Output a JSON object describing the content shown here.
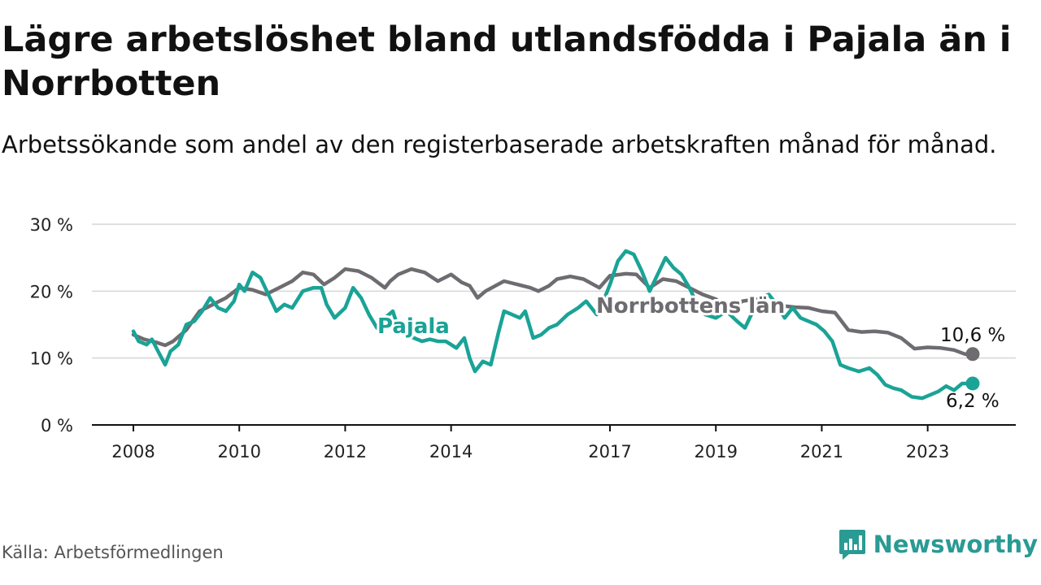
{
  "header": {
    "title": "Lägre arbetslöshet bland utlandsfödda i Pajala än i Norrbotten",
    "subtitle": "Arbetssökande som andel av den registerbaserade arbetskraften månad för månad."
  },
  "footer": {
    "source": "Källa: Arbetsförmedlingen",
    "brand": "Newsworthy"
  },
  "colors": {
    "pajala": "#1aa396",
    "norrbotten": "#6e6c70",
    "brand": "#2a9a94"
  },
  "chart_data": {
    "type": "line",
    "title": "Lägre arbetslöshet bland utlandsfödda i Pajala än i Norrbotten",
    "xlabel": "",
    "ylabel": "",
    "xlim": [
      2008.0,
      2024.55
    ],
    "ylim": [
      0,
      30
    ],
    "grid": true,
    "x_ticks": [
      2008,
      2010,
      2012,
      2014,
      2017,
      2019,
      2021,
      2023
    ],
    "x_tick_labels": [
      "2008",
      "2010",
      "2012",
      "2014",
      "2017",
      "2019",
      "2021",
      "2023"
    ],
    "y_ticks": [
      0,
      10,
      20,
      30
    ],
    "y_tick_labels": [
      "0 %",
      "10 %",
      "20 %",
      "30 %"
    ],
    "series": [
      {
        "name": "Norrbottens län",
        "label_text": "Norrbottens län",
        "end_label": "10,6 %",
        "x": [
          2008.0,
          2008.2,
          2008.45,
          2008.6,
          2008.75,
          2009.0,
          2009.25,
          2009.5,
          2009.75,
          2010.0,
          2010.25,
          2010.5,
          2010.75,
          2011.0,
          2011.2,
          2011.4,
          2011.6,
          2011.8,
          2012.0,
          2012.25,
          2012.5,
          2012.75,
          2012.85,
          2013.0,
          2013.25,
          2013.5,
          2013.75,
          2014.0,
          2014.2,
          2014.35,
          2014.5,
          2014.65,
          2015.0,
          2015.25,
          2015.5,
          2015.65,
          2015.85,
          2016.0,
          2016.25,
          2016.5,
          2016.8,
          2017.0,
          2017.3,
          2017.5,
          2017.75,
          2018.0,
          2018.25,
          2018.5,
          2018.75,
          2019.0,
          2019.25,
          2019.5,
          2019.75,
          2020.0,
          2020.25,
          2020.5,
          2020.75,
          2021.0,
          2021.25,
          2021.5,
          2021.75,
          2022.0,
          2022.25,
          2022.5,
          2022.75,
          2023.0,
          2023.25,
          2023.5,
          2023.7,
          2023.85
        ],
        "values": [
          13.5,
          12.8,
          12.3,
          11.9,
          12.5,
          14.2,
          17.0,
          18.0,
          19.0,
          20.5,
          20.2,
          19.5,
          20.5,
          21.5,
          22.8,
          22.5,
          21.0,
          22.0,
          23.3,
          23.0,
          22.0,
          20.5,
          21.5,
          22.5,
          23.3,
          22.8,
          21.5,
          22.5,
          21.3,
          20.8,
          19.0,
          20.0,
          21.5,
          21.0,
          20.5,
          20.0,
          20.8,
          21.8,
          22.2,
          21.8,
          20.5,
          22.3,
          22.6,
          22.5,
          20.5,
          21.8,
          21.5,
          20.5,
          19.5,
          18.8,
          17.2,
          18.5,
          18.8,
          18.2,
          17.8,
          17.6,
          17.5,
          17.0,
          16.8,
          14.2,
          13.9,
          14.0,
          13.8,
          13.0,
          11.4,
          11.6,
          11.5,
          11.2,
          10.6,
          10.6
        ]
      },
      {
        "name": "Pajala",
        "label_text": "Pajala",
        "end_label": "6,2 %",
        "x": [
          2008.0,
          2008.1,
          2008.25,
          2008.35,
          2008.5,
          2008.6,
          2008.7,
          2008.85,
          2009.0,
          2009.15,
          2009.3,
          2009.45,
          2009.6,
          2009.75,
          2009.9,
          2010.0,
          2010.1,
          2010.25,
          2010.4,
          2010.55,
          2010.7,
          2010.85,
          2011.0,
          2011.2,
          2011.4,
          2011.55,
          2011.65,
          2011.8,
          2012.0,
          2012.15,
          2012.3,
          2012.45,
          2012.6,
          2012.75,
          2012.9,
          2013.0,
          2013.15,
          2013.3,
          2013.45,
          2013.6,
          2013.75,
          2013.9,
          2014.0,
          2014.1,
          2014.25,
          2014.35,
          2014.45,
          2014.6,
          2014.75,
          2014.9,
          2015.0,
          2015.15,
          2015.3,
          2015.4,
          2015.55,
          2015.7,
          2015.85,
          2016.0,
          2016.2,
          2016.4,
          2016.55,
          2016.75,
          2016.9,
          2017.0,
          2017.15,
          2017.3,
          2017.45,
          2017.6,
          2017.75,
          2017.9,
          2018.05,
          2018.2,
          2018.35,
          2018.5,
          2018.65,
          2018.8,
          2019.0,
          2019.2,
          2019.4,
          2019.55,
          2019.7,
          2019.85,
          2020.0,
          2020.15,
          2020.3,
          2020.45,
          2020.6,
          2020.75,
          2020.9,
          2021.05,
          2021.2,
          2021.35,
          2021.5,
          2021.7,
          2021.9,
          2022.05,
          2022.2,
          2022.35,
          2022.5,
          2022.7,
          2022.9,
          2023.05,
          2023.2,
          2023.35,
          2023.5,
          2023.65,
          2023.85
        ],
        "values": [
          14.0,
          12.5,
          12.0,
          12.8,
          10.5,
          9.0,
          11.0,
          12.0,
          15.0,
          15.5,
          17.0,
          19.0,
          17.5,
          17.0,
          18.5,
          21.0,
          20.0,
          22.8,
          22.0,
          19.5,
          17.0,
          18.0,
          17.5,
          20.0,
          20.5,
          20.5,
          18.0,
          16.0,
          17.5,
          20.5,
          19.0,
          16.5,
          14.5,
          16.0,
          17.0,
          14.5,
          13.5,
          13.0,
          12.5,
          12.8,
          12.5,
          12.5,
          12.0,
          11.5,
          13.0,
          10.0,
          8.0,
          9.5,
          9.0,
          14.0,
          17.0,
          16.5,
          16.0,
          17.0,
          13.0,
          13.5,
          14.5,
          15.0,
          16.5,
          17.5,
          18.5,
          16.5,
          19.0,
          21.0,
          24.5,
          26.0,
          25.5,
          23.0,
          20.0,
          22.5,
          25.0,
          23.5,
          22.5,
          20.5,
          18.0,
          16.5,
          16.0,
          17.0,
          15.5,
          14.5,
          17.0,
          19.0,
          19.5,
          18.0,
          16.0,
          17.5,
          16.0,
          15.5,
          15.0,
          14.0,
          12.5,
          9.0,
          8.5,
          8.0,
          8.5,
          7.5,
          6.0,
          5.5,
          5.2,
          4.2,
          4.0,
          4.5,
          5.0,
          5.8,
          5.2,
          6.2,
          6.2
        ]
      }
    ]
  }
}
